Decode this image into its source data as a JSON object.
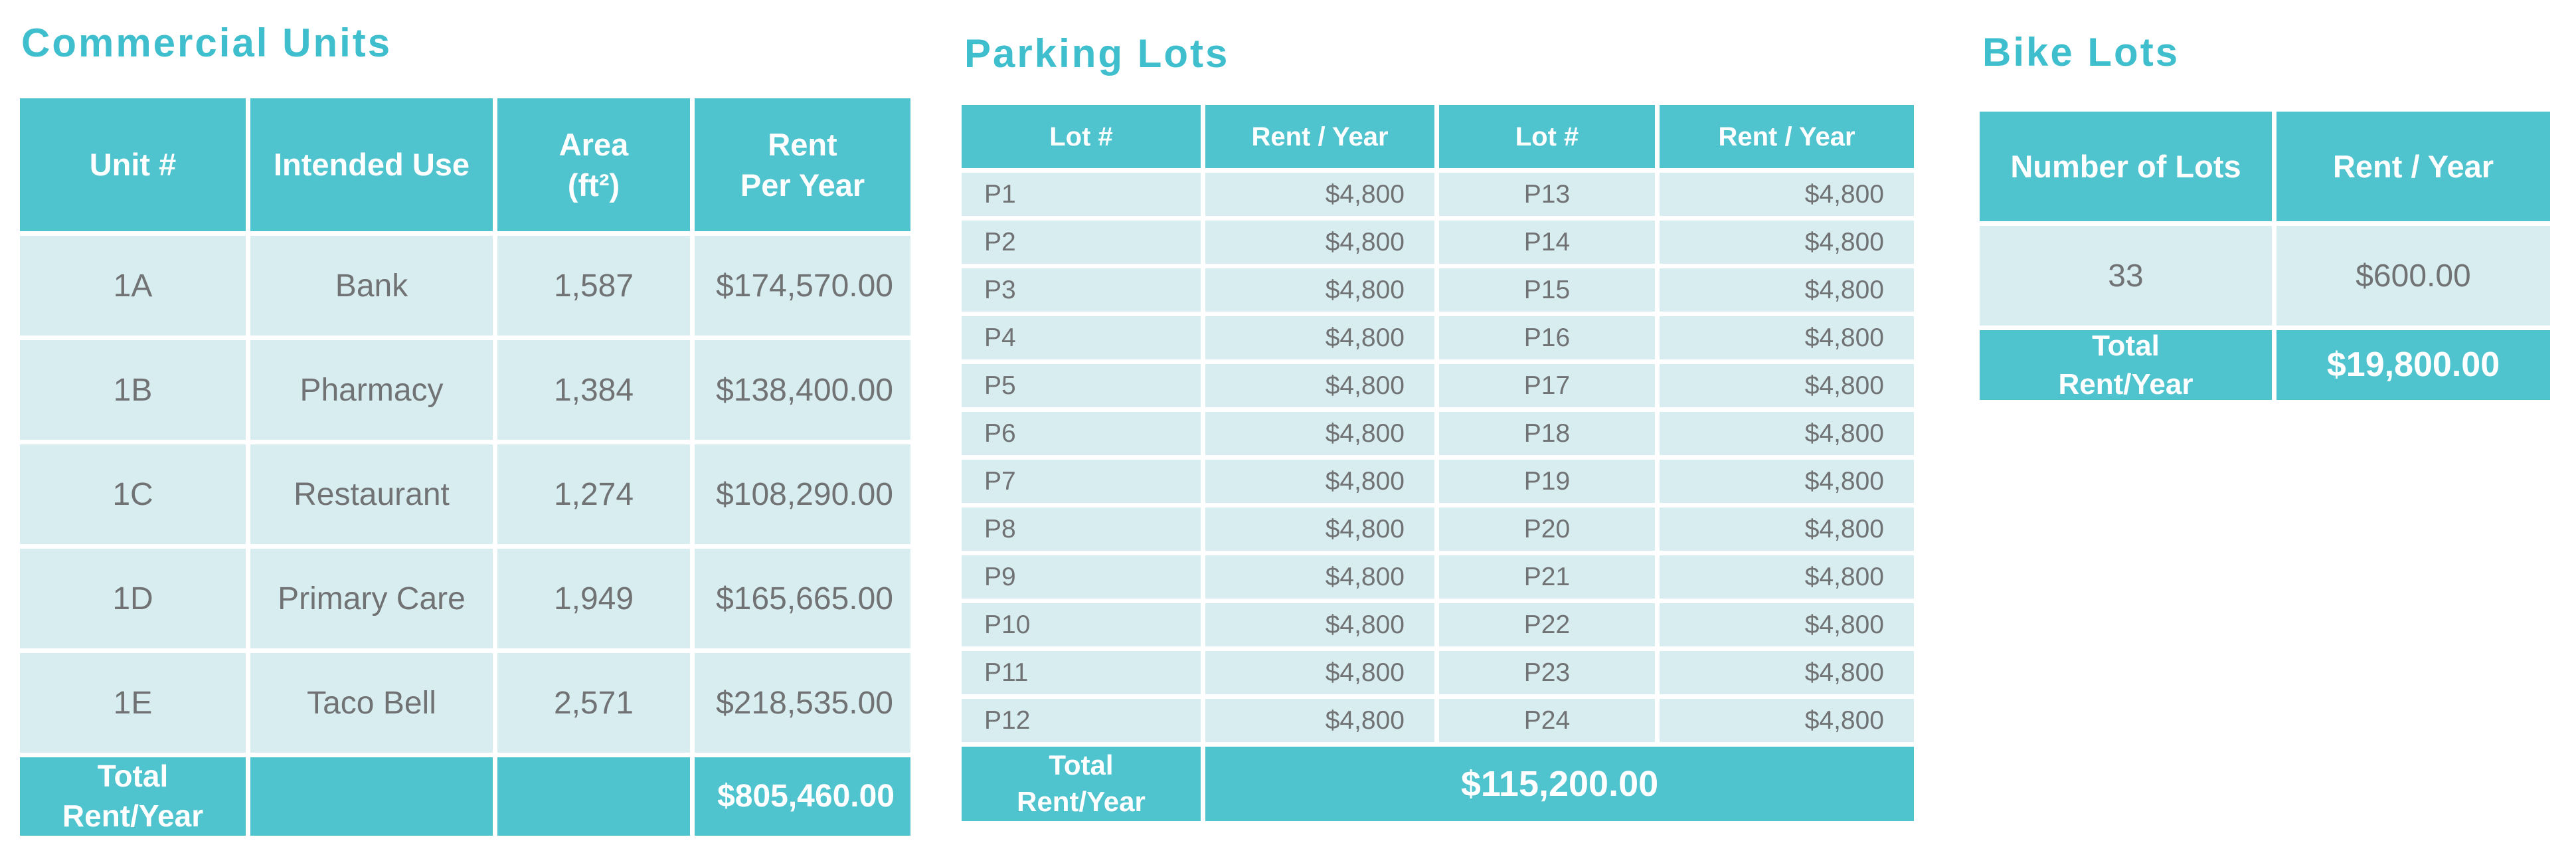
{
  "colors": {
    "accent_teal": "#4fc3ce",
    "light_row": "#d8edf0",
    "title_teal": "#3fbfcd",
    "body_text_gray": "#707274",
    "header_text": "#ffffff"
  },
  "commercial_units": {
    "title": "Commercial Units",
    "columns": [
      "Unit #",
      "Intended Use",
      "Area\n(ft²)",
      "Rent\nPer Year"
    ],
    "rows": [
      {
        "unit": "1A",
        "use": "Bank",
        "area": "1,587",
        "rent": "$174,570.00"
      },
      {
        "unit": "1B",
        "use": "Pharmacy",
        "area": "1,384",
        "rent": "$138,400.00"
      },
      {
        "unit": "1C",
        "use": "Restaurant",
        "area": "1,274",
        "rent": "$108,290.00"
      },
      {
        "unit": "1D",
        "use": "Primary Care",
        "area": "1,949",
        "rent": "$165,665.00"
      },
      {
        "unit": "1E",
        "use": "Taco Bell",
        "area": "2,571",
        "rent": "$218,535.00"
      }
    ],
    "total_label": "Total\nRent/Year",
    "total_value": "$805,460.00"
  },
  "parking_lots": {
    "title": "Parking Lots",
    "columns": [
      "Lot #",
      "Rent / Year",
      "Lot #",
      "Rent / Year"
    ],
    "rows": [
      {
        "lot_a": "P1",
        "rent_a": "$4,800",
        "lot_b": "P13",
        "rent_b": "$4,800"
      },
      {
        "lot_a": "P2",
        "rent_a": "$4,800",
        "lot_b": "P14",
        "rent_b": "$4,800"
      },
      {
        "lot_a": "P3",
        "rent_a": "$4,800",
        "lot_b": "P15",
        "rent_b": "$4,800"
      },
      {
        "lot_a": "P4",
        "rent_a": "$4,800",
        "lot_b": "P16",
        "rent_b": "$4,800"
      },
      {
        "lot_a": "P5",
        "rent_a": "$4,800",
        "lot_b": "P17",
        "rent_b": "$4,800"
      },
      {
        "lot_a": "P6",
        "rent_a": "$4,800",
        "lot_b": "P18",
        "rent_b": "$4,800"
      },
      {
        "lot_a": "P7",
        "rent_a": "$4,800",
        "lot_b": "P19",
        "rent_b": "$4,800"
      },
      {
        "lot_a": "P8",
        "rent_a": "$4,800",
        "lot_b": "P20",
        "rent_b": "$4,800"
      },
      {
        "lot_a": "P9",
        "rent_a": "$4,800",
        "lot_b": "P21",
        "rent_b": "$4,800"
      },
      {
        "lot_a": "P10",
        "rent_a": "$4,800",
        "lot_b": "P22",
        "rent_b": "$4,800"
      },
      {
        "lot_a": "P11",
        "rent_a": "$4,800",
        "lot_b": "P23",
        "rent_b": "$4,800"
      },
      {
        "lot_a": "P12",
        "rent_a": "$4,800",
        "lot_b": "P24",
        "rent_b": "$4,800"
      }
    ],
    "total_label": "Total\nRent/Year",
    "total_value": "$115,200.00"
  },
  "bike_lots": {
    "title": "Bike Lots",
    "columns": [
      "Number of Lots",
      "Rent / Year"
    ],
    "rows": [
      {
        "count": "33",
        "rent": "$600.00"
      }
    ],
    "total_label": "Total\nRent/Year",
    "total_value": "$19,800.00"
  }
}
